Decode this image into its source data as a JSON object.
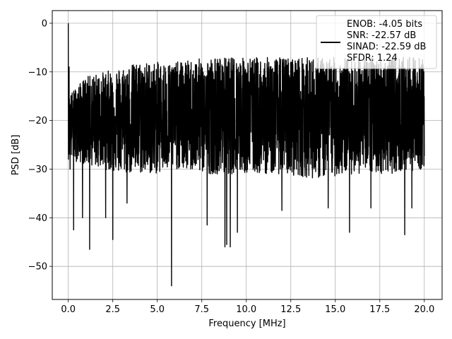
{
  "chart_data": {
    "type": "line",
    "title": "",
    "xlabel": "Frequency [MHz]",
    "ylabel": "PSD [dB]",
    "xlim": [
      -0.9,
      21.0
    ],
    "ylim": [
      -56.8,
      2.6
    ],
    "xticks": [
      0.0,
      2.5,
      5.0,
      7.5,
      10.0,
      12.5,
      15.0,
      17.5,
      20.0
    ],
    "xtick_labels": [
      "0.0",
      "2.5",
      "5.0",
      "7.5",
      "10.0",
      "12.5",
      "15.0",
      "17.5",
      "20.0"
    ],
    "yticks": [
      0,
      -10,
      -20,
      -30,
      -40,
      -50
    ],
    "ytick_labels": [
      "0",
      "−10",
      "−20",
      "−30",
      "−40",
      "−50"
    ],
    "grid": true,
    "legend": {
      "placement": "upper right",
      "lines": [
        "ENOB: -4.05 bits",
        "SNR: -22.57 dB",
        "SINAD: -22.59 dB",
        "SFDR: 1.24"
      ]
    },
    "series": [
      {
        "color": "#000000",
        "noise_floor_db": -20,
        "noise_floor_x": [
          0.0,
          1.0,
          2.0,
          3.0,
          4.0,
          5.0,
          6.0,
          8.0,
          10.0,
          12.0,
          14.0,
          16.0,
          18.0,
          20.0
        ],
        "noise_floor_top_db": [
          -15,
          -11,
          -10,
          -9,
          -8,
          -8,
          -8,
          -7,
          -7,
          -7,
          -7,
          -7,
          -7,
          -7
        ],
        "noise_floor_bottom_db": [
          -28,
          -29,
          -30,
          -31,
          -31,
          -31,
          -30,
          -31,
          -31,
          -31,
          -32,
          -31,
          -31,
          -30
        ],
        "spikes_x": [
          0.0,
          0.05,
          0.1,
          0.3,
          0.8,
          1.2,
          2.1,
          2.5,
          3.3,
          5.8,
          7.8,
          8.8,
          8.9,
          9.1,
          9.5,
          12.0,
          14.6,
          15.8,
          17.0,
          18.9,
          19.3
        ],
        "spikes_db": [
          0.0,
          -9.0,
          -30.0,
          -42.5,
          -40.0,
          -46.5,
          -40.0,
          -44.5,
          -37.0,
          -54.0,
          -41.5,
          -46.0,
          -45.5,
          -46.0,
          -43.0,
          -38.5,
          -38.0,
          -43.0,
          -38.0,
          -43.5,
          -38.0
        ]
      }
    ]
  }
}
